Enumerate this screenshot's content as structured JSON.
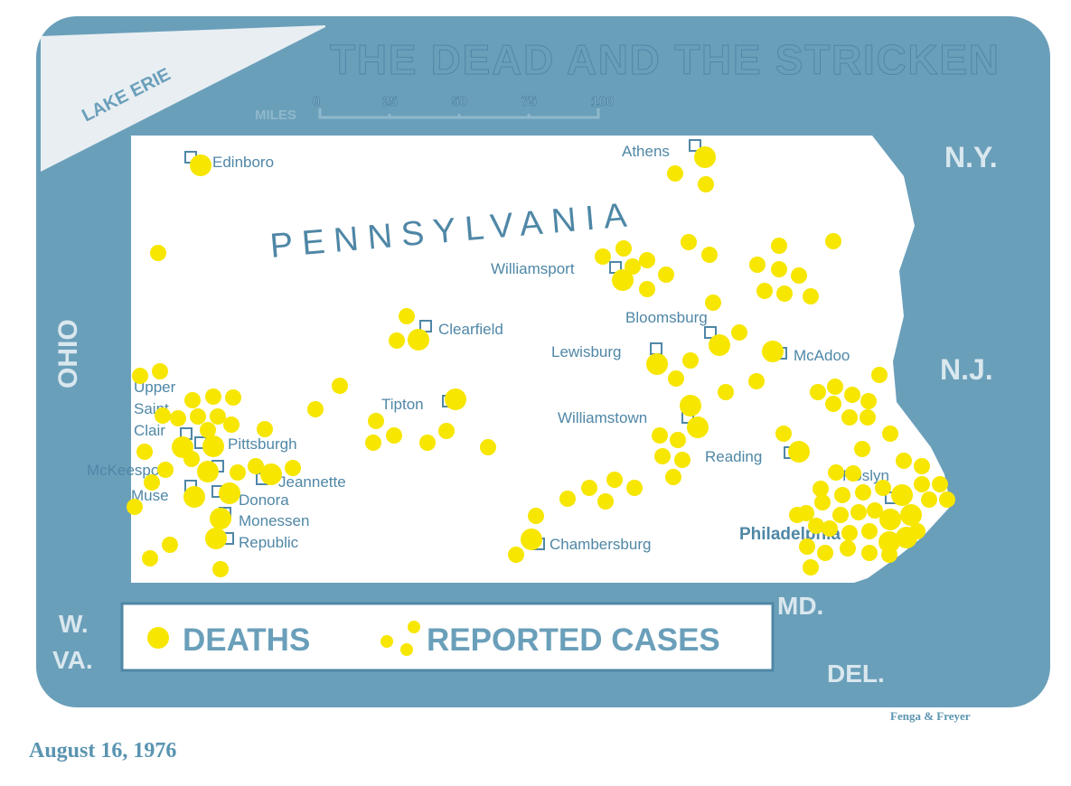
{
  "title": "THE DEAD AND THE STRICKEN",
  "state_label": "PENNSYLVANIA",
  "water_label": "LAKE ERIE",
  "neighbor_states": [
    "OHIO",
    "N.Y.",
    "N.J.",
    "MD.",
    "DEL.",
    "W.",
    "VA."
  ],
  "scale": {
    "unit": "MILES",
    "ticks": [
      "0",
      "25",
      "50",
      "75",
      "100"
    ]
  },
  "cities": [
    "Edinboro",
    "Athens",
    "Williamsport",
    "Clearfield",
    "Bloomsburg",
    "Lewisburg",
    "McAdoo",
    "Upper",
    "Saint",
    "Clair",
    "Tipton",
    "Williamstown",
    "Pittsburgh",
    "McKeesport",
    "Jeannette",
    "Reading",
    "Roslyn",
    "Muse",
    "Donora",
    "Monessen",
    "Republic",
    "Chambersburg",
    "Philadelphia"
  ],
  "legend": {
    "deaths": "DEATHS",
    "reported_cases": "REPORTED CASES"
  },
  "colors": {
    "map_blue": "#6a9fba",
    "dot_yellow": "#f7e600",
    "label_blue": "#4f87a6"
  },
  "credit": "Fenga & Freyer",
  "date": "August 16, 1976"
}
